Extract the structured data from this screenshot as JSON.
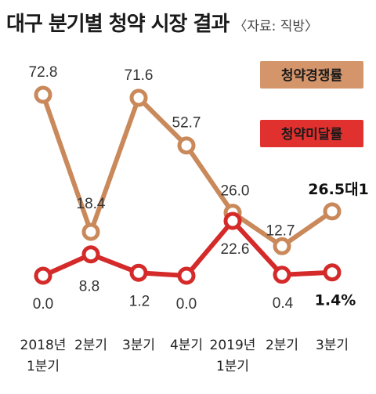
{
  "title": "대구 분기별 청약 시장 결과",
  "source": "〈자료: 직방〉",
  "colors": {
    "competition": "#c9895a",
    "competition_legend": "#d4956b",
    "unsold": "#d42a2a",
    "unsold_legend": "#e0312f"
  },
  "chart_data": {
    "type": "line",
    "title": "대구 분기별 청약 시장 결과",
    "categories": [
      [
        "2018년",
        "1분기"
      ],
      [
        "2분기"
      ],
      [
        "3분기"
      ],
      [
        "4분기"
      ],
      [
        "2019년",
        "1분기"
      ],
      [
        "2분기"
      ],
      [
        "3분기"
      ]
    ],
    "series": [
      {
        "name": "청약경쟁률",
        "values": [
          72.8,
          18.4,
          71.6,
          52.7,
          26.0,
          12.7,
          26.5
        ],
        "labels": [
          "72.8",
          "18.4",
          "71.6",
          "52.7",
          "26.0",
          "12.7",
          "26.5대1"
        ]
      },
      {
        "name": "청약미달률",
        "values": [
          0.0,
          8.8,
          1.2,
          0.0,
          22.6,
          0.4,
          1.4
        ],
        "labels": [
          "0.0",
          "8.8",
          "1.2",
          "0.0",
          "22.6",
          "0.4",
          "1.4%"
        ]
      }
    ],
    "grid": false,
    "legend": "right"
  }
}
